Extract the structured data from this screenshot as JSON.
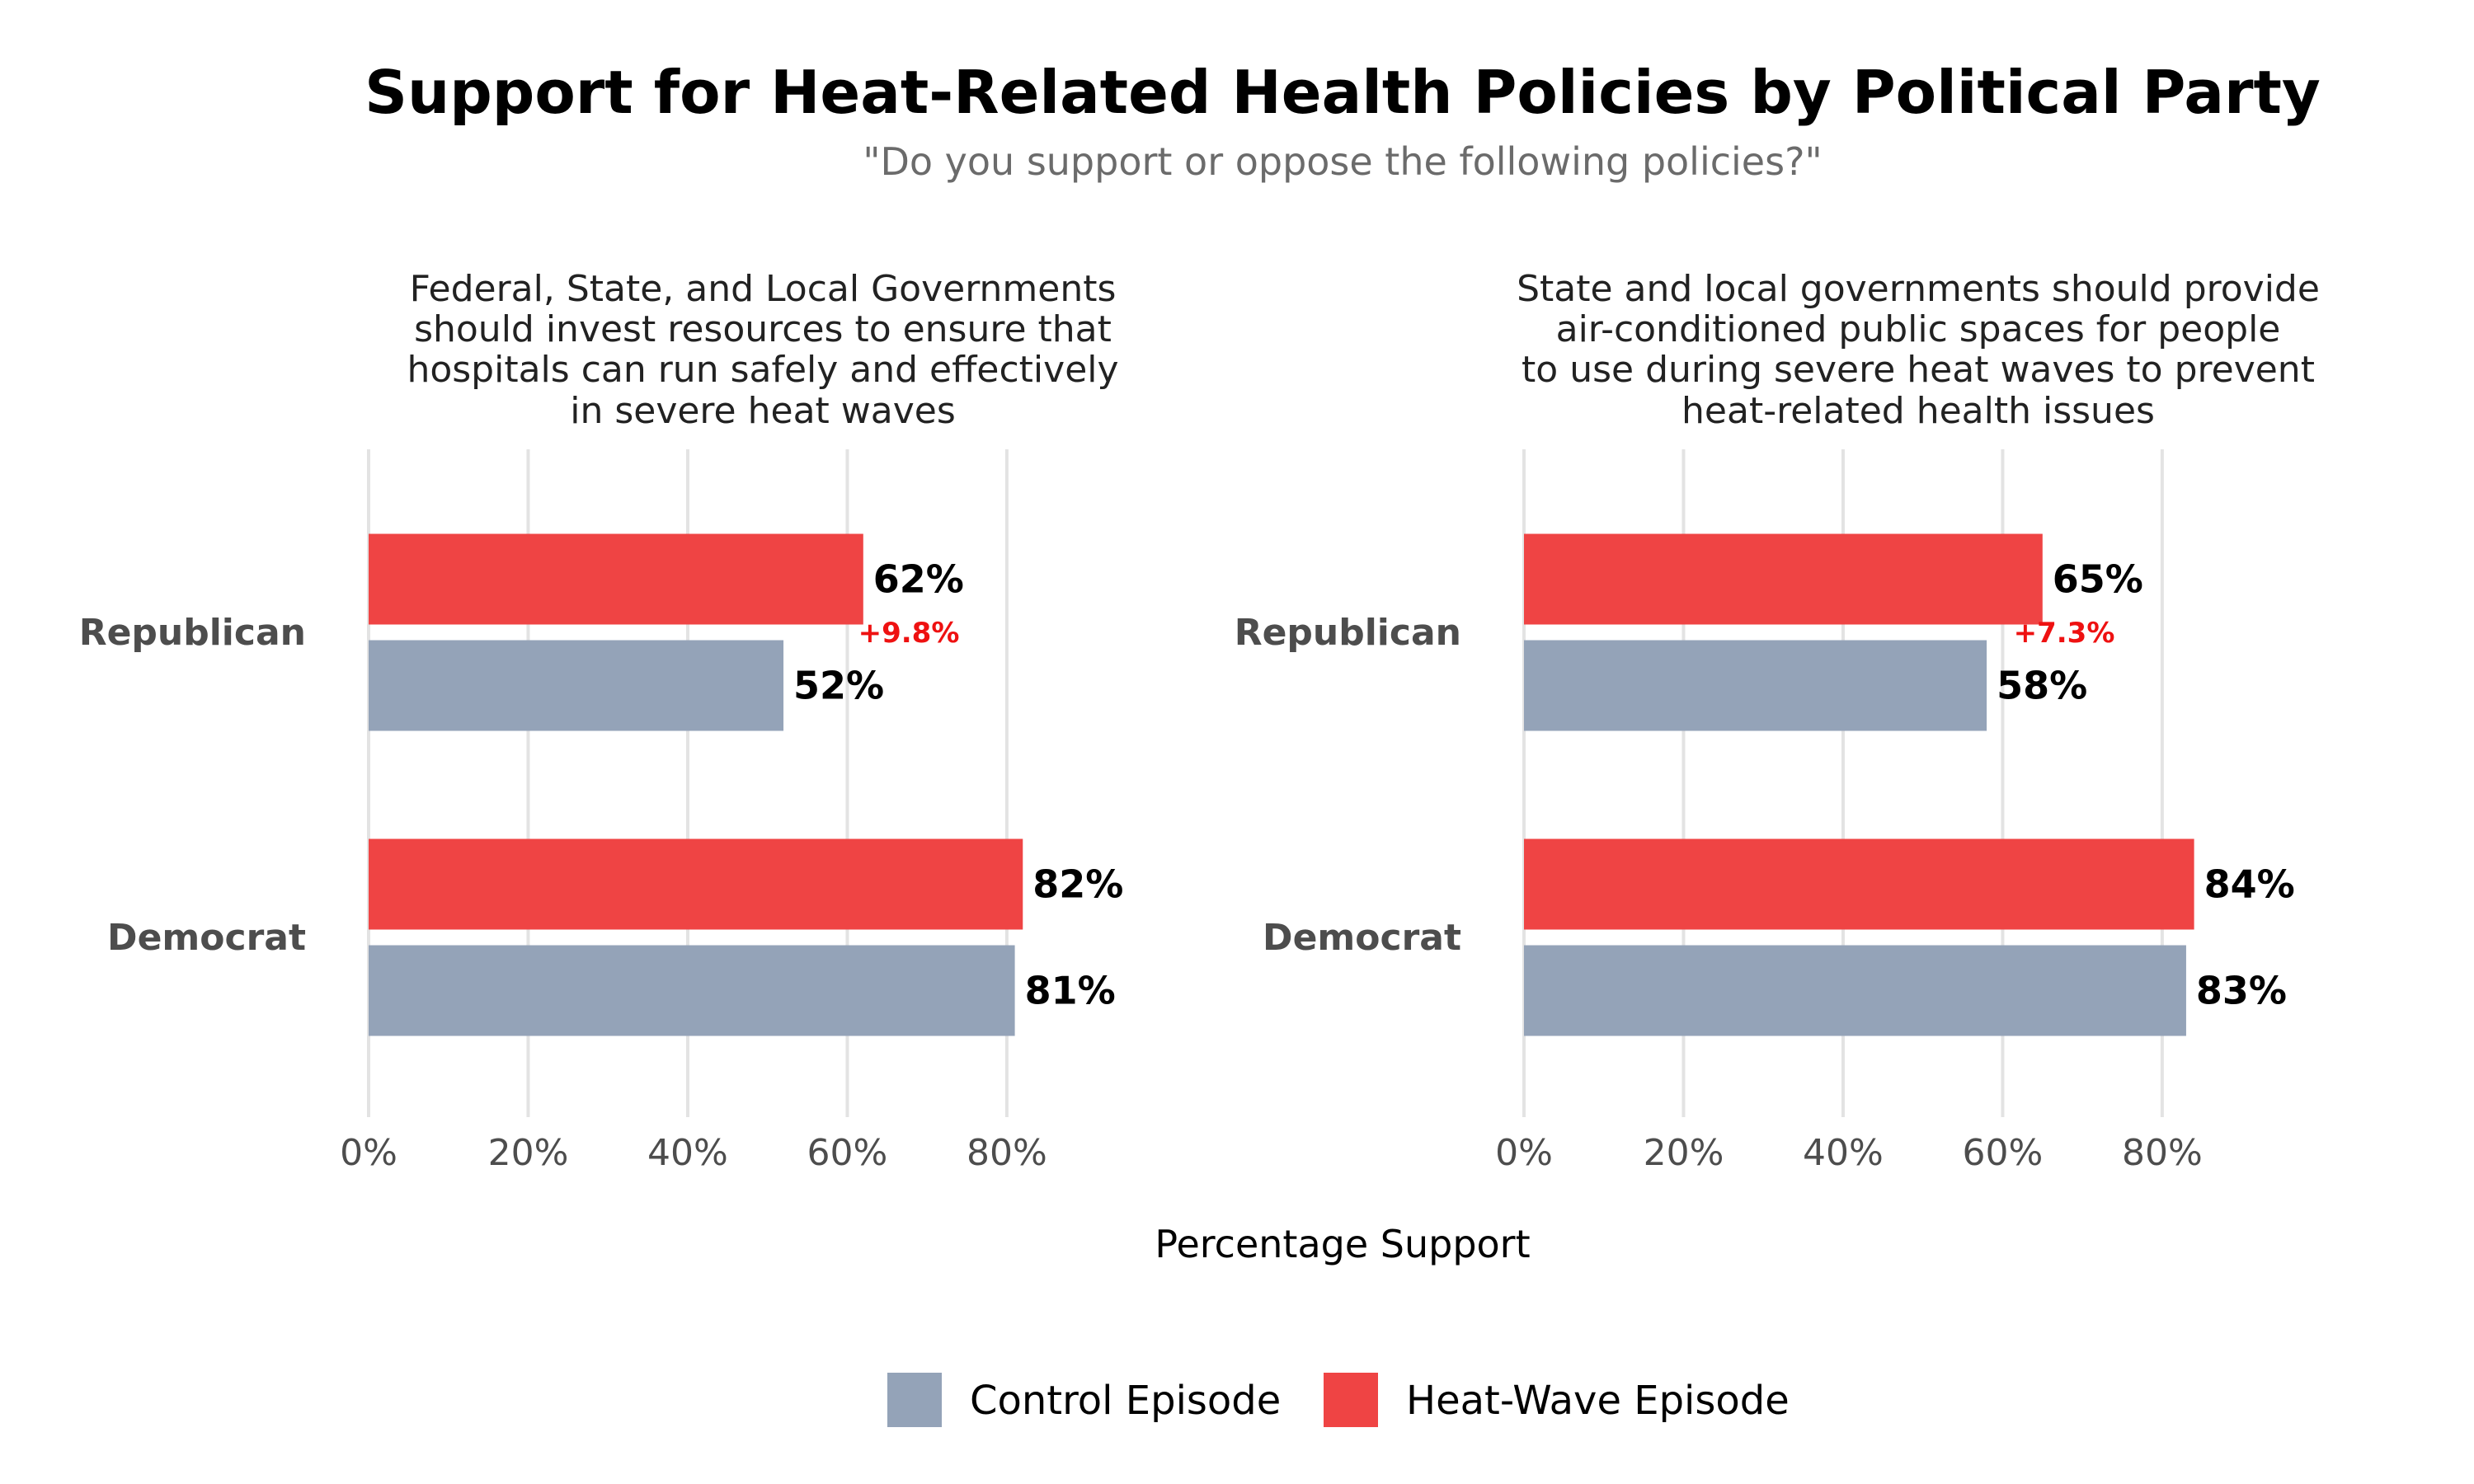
{
  "title": "Support for Heat-Related Health Policies by Political Party",
  "subtitle": "\"Do you support or oppose the following policies?\"",
  "xlabel": "Percentage Support",
  "colors": {
    "control": "#94a3b8",
    "heat": "#ef4444",
    "diff": "#ee1111"
  },
  "legend": [
    {
      "name": "Control Episode",
      "color": "#94a3b8"
    },
    {
      "name": "Heat-Wave Episode",
      "color": "#ef4444"
    }
  ],
  "chart_data": [
    {
      "type": "bar",
      "orientation": "horizontal",
      "title_lines": [
        "Federal, State, and Local Governments",
        "should invest resources to ensure that",
        "hospitals can run safely and effectively",
        "in severe heat waves"
      ],
      "categories": [
        "Republican",
        "Democrat"
      ],
      "series": [
        {
          "name": "Heat-Wave Episode",
          "values": [
            62,
            82
          ],
          "labels": [
            "62%",
            "82%"
          ]
        },
        {
          "name": "Control Episode",
          "values": [
            52,
            81
          ],
          "labels": [
            "52%",
            "81%"
          ]
        }
      ],
      "annotations": [
        {
          "category": "Republican",
          "text": "+9.8%"
        }
      ],
      "xlim": [
        0,
        92
      ],
      "xticks": [
        0,
        20,
        40,
        60,
        80
      ],
      "xtick_labels": [
        "0%",
        "20%",
        "40%",
        "60%",
        "80%"
      ],
      "grid": true
    },
    {
      "type": "bar",
      "orientation": "horizontal",
      "title_lines": [
        "State and local governments should provide",
        "air-conditioned public spaces for people",
        "to use during severe heat waves to prevent",
        "heat-related health issues"
      ],
      "categories": [
        "Republican",
        "Democrat"
      ],
      "series": [
        {
          "name": "Heat-Wave Episode",
          "values": [
            65,
            84
          ],
          "labels": [
            "65%",
            "84%"
          ]
        },
        {
          "name": "Control Episode",
          "values": [
            58,
            83
          ],
          "labels": [
            "58%",
            "83%"
          ]
        }
      ],
      "annotations": [
        {
          "category": "Republican",
          "text": "+7.3%"
        }
      ],
      "xlim": [
        0,
        92
      ],
      "xticks": [
        0,
        20,
        40,
        60,
        80
      ],
      "xtick_labels": [
        "0%",
        "20%",
        "40%",
        "60%",
        "80%"
      ],
      "grid": true
    }
  ]
}
